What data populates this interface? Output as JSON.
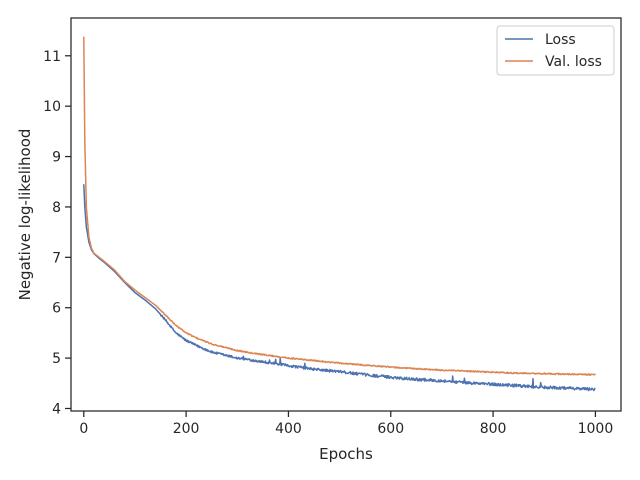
{
  "chart_data": {
    "type": "line",
    "title": "",
    "xlabel": "Epochs",
    "ylabel": "Negative log-likelihood",
    "xlim": [
      -25,
      1050
    ],
    "ylim": [
      3.95,
      11.75
    ],
    "xticks": [
      0,
      200,
      400,
      600,
      800,
      1000
    ],
    "yticks": [
      4,
      5,
      6,
      7,
      8,
      9,
      10,
      11
    ],
    "grid": false,
    "legend_position": "top-right",
    "series": [
      {
        "name": "Loss",
        "color": "#4c72b0",
        "x": [
          0,
          2,
          5,
          10,
          15,
          20,
          30,
          40,
          60,
          80,
          100,
          120,
          140,
          160,
          180,
          200,
          220,
          250,
          300,
          350,
          400,
          450,
          500,
          550,
          600,
          650,
          700,
          750,
          800,
          850,
          900,
          950,
          1000
        ],
        "y": [
          8.45,
          8.0,
          7.6,
          7.3,
          7.15,
          7.07,
          6.98,
          6.9,
          6.72,
          6.5,
          6.3,
          6.15,
          5.98,
          5.75,
          5.5,
          5.35,
          5.25,
          5.12,
          5.0,
          4.93,
          4.85,
          4.78,
          4.73,
          4.67,
          4.62,
          4.58,
          4.55,
          4.51,
          4.48,
          4.45,
          4.42,
          4.4,
          4.38
        ]
      },
      {
        "name": "Val. loss",
        "color": "#dd8452",
        "x": [
          0,
          2,
          5,
          10,
          15,
          20,
          30,
          40,
          60,
          80,
          100,
          120,
          140,
          160,
          180,
          200,
          220,
          250,
          300,
          350,
          400,
          450,
          500,
          550,
          600,
          650,
          700,
          750,
          800,
          850,
          900,
          950,
          1000
        ],
        "y": [
          11.38,
          9.3,
          8.0,
          7.4,
          7.18,
          7.08,
          7.0,
          6.92,
          6.75,
          6.52,
          6.35,
          6.2,
          6.05,
          5.85,
          5.65,
          5.5,
          5.4,
          5.28,
          5.15,
          5.07,
          5.0,
          4.95,
          4.9,
          4.86,
          4.82,
          4.79,
          4.76,
          4.74,
          4.72,
          4.7,
          4.69,
          4.68,
          4.67
        ]
      }
    ]
  }
}
